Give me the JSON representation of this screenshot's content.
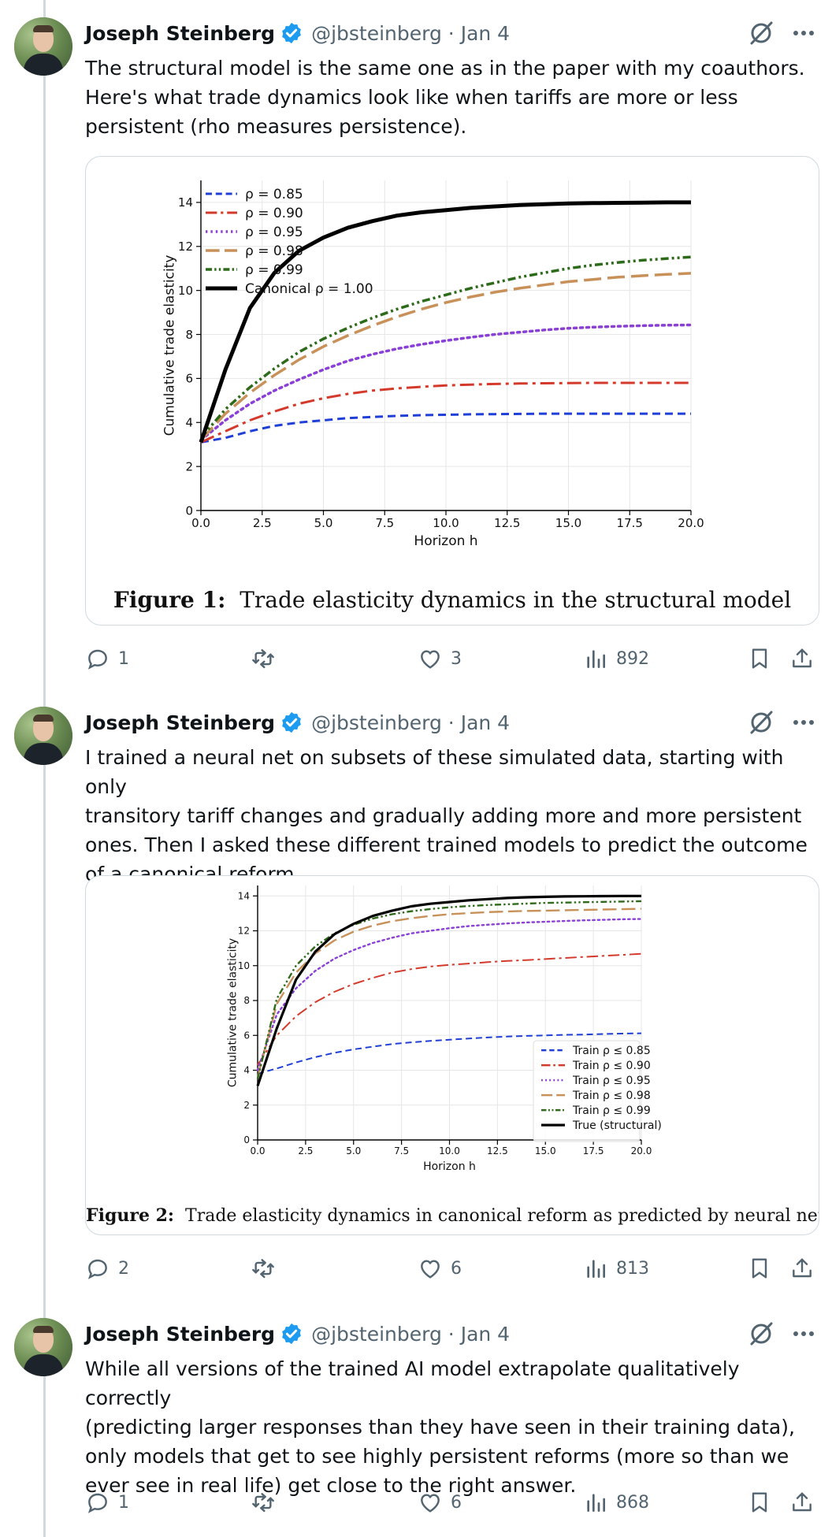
{
  "author": {
    "name": "Joseph Steinberg",
    "handle": "@jbsteinberg",
    "date": "Jan 4",
    "handle_date": "@jbsteinberg · Jan 4"
  },
  "colors": {
    "verified": "#1d9bf0",
    "muted": "#536471",
    "border": "#cfd9de"
  },
  "tweets": [
    {
      "text": "The structural model is the same one as in the paper with my coauthors.\nHere's what trade dynamics look like when tariffs are more or less\npersistent (rho measures persistence).",
      "caption_label": "Figure 1:",
      "caption_text": "Trade elasticity dynamics in the structural model",
      "stats": {
        "replies": "1",
        "retweets": "",
        "likes": "3",
        "views": "892"
      }
    },
    {
      "text": "I trained a neural net on subsets of these simulated data, starting with only\ntransitory tariff changes and gradually adding more and more persistent\nones. Then I asked these different trained models to predict the outcome\nof a canonical reform.",
      "caption_label": "Figure 2:",
      "caption_text": "Trade elasticity dynamics in canonical reform as predicted by neural net",
      "stats": {
        "replies": "2",
        "retweets": "",
        "likes": "6",
        "views": "813"
      }
    },
    {
      "text": "While all versions of the trained AI model extrapolate qualitatively correctly\n(predicting larger responses than they have seen in their training data),\nonly models that get to see highly persistent reforms (more so than we\never see in real life) get close to the right answer.",
      "stats": {
        "replies": "1",
        "retweets": "",
        "likes": "6",
        "views": "868"
      }
    }
  ],
  "chart_data": [
    {
      "type": "line",
      "xlabel": "Horizon h",
      "ylabel": "Cumulative trade elasticity",
      "xlim": [
        0,
        20
      ],
      "ylim": [
        0,
        15
      ],
      "xticks": [
        "0.0",
        "2.5",
        "5.0",
        "7.5",
        "10.0",
        "12.5",
        "15.0",
        "17.5",
        "20.0"
      ],
      "yticks": [
        "0",
        "2",
        "4",
        "6",
        "8",
        "10",
        "12",
        "14"
      ],
      "legend": "upper-left",
      "grid": true,
      "x": [
        0,
        1,
        2,
        3,
        4,
        5,
        6,
        7,
        8,
        9,
        10,
        11,
        12,
        13,
        14,
        15,
        16,
        17,
        18,
        19,
        20
      ],
      "series": [
        {
          "name": "ρ = 0.85",
          "color": "#1f3fd6",
          "dash": "10,6",
          "width": 3,
          "values": [
            3.1,
            3.3,
            3.6,
            3.85,
            4.0,
            4.1,
            4.2,
            4.25,
            4.3,
            4.33,
            4.35,
            4.37,
            4.38,
            4.39,
            4.4,
            4.4,
            4.4,
            4.4,
            4.4,
            4.4,
            4.4
          ]
        },
        {
          "name": "ρ = 0.90",
          "color": "#d43a2c",
          "dash": "18,6,4,6",
          "width": 3,
          "values": [
            3.1,
            3.6,
            4.1,
            4.5,
            4.85,
            5.1,
            5.3,
            5.45,
            5.55,
            5.62,
            5.68,
            5.72,
            5.75,
            5.77,
            5.78,
            5.79,
            5.8,
            5.8,
            5.8,
            5.8,
            5.8
          ]
        },
        {
          "name": "ρ = 0.95",
          "color": "#8a3fd6",
          "dash": "3,5",
          "width": 3.5,
          "values": [
            3.2,
            4.1,
            4.85,
            5.45,
            5.95,
            6.4,
            6.8,
            7.1,
            7.35,
            7.55,
            7.72,
            7.87,
            8.0,
            8.1,
            8.2,
            8.28,
            8.33,
            8.37,
            8.4,
            8.42,
            8.43
          ]
        },
        {
          "name": "ρ = 0.98",
          "color": "#c8915a",
          "dash": "22,8",
          "width": 3.5,
          "values": [
            3.2,
            4.4,
            5.35,
            6.15,
            6.85,
            7.45,
            7.95,
            8.4,
            8.8,
            9.15,
            9.45,
            9.7,
            9.92,
            10.1,
            10.25,
            10.4,
            10.5,
            10.6,
            10.67,
            10.73,
            10.78
          ]
        },
        {
          "name": "ρ = 0.99",
          "color": "#2d6a1a",
          "dash": "10,4,3,4,3,4",
          "width": 3.5,
          "values": [
            3.3,
            4.6,
            5.6,
            6.45,
            7.2,
            7.8,
            8.3,
            8.75,
            9.15,
            9.5,
            9.8,
            10.1,
            10.35,
            10.6,
            10.8,
            11.0,
            11.15,
            11.27,
            11.37,
            11.45,
            11.52
          ]
        },
        {
          "name": "Canonical ρ = 1.00",
          "color": "#000000",
          "dash": "",
          "width": 5,
          "values": [
            3.1,
            6.4,
            9.2,
            10.8,
            11.8,
            12.4,
            12.85,
            13.15,
            13.4,
            13.55,
            13.65,
            13.75,
            13.82,
            13.88,
            13.92,
            13.95,
            13.97,
            13.98,
            13.99,
            14.0,
            14.0
          ]
        }
      ]
    },
    {
      "type": "line",
      "xlabel": "Horizon h",
      "ylabel": "Cumulative trade elasticity",
      "xlim": [
        0,
        20
      ],
      "ylim": [
        0,
        14.6
      ],
      "xticks": [
        "0.0",
        "2.5",
        "5.0",
        "7.5",
        "10.0",
        "12.5",
        "15.0",
        "17.5",
        "20.0"
      ],
      "yticks": [
        "0",
        "2",
        "4",
        "6",
        "8",
        "10",
        "12",
        "14"
      ],
      "legend": "lower-right",
      "grid": true,
      "x": [
        0,
        1,
        2,
        3,
        4,
        5,
        6,
        7,
        8,
        9,
        10,
        11,
        12,
        13,
        14,
        15,
        16,
        17,
        18,
        19,
        20
      ],
      "series": [
        {
          "name": "Train ρ ≤ 0.85",
          "color": "#1f3fd6",
          "dash": "10,6",
          "width": 2.5,
          "values": [
            3.8,
            4.1,
            4.45,
            4.75,
            5.0,
            5.2,
            5.35,
            5.5,
            5.6,
            5.68,
            5.75,
            5.82,
            5.88,
            5.93,
            5.97,
            6.0,
            6.03,
            6.05,
            6.08,
            6.1,
            6.12
          ]
        },
        {
          "name": "Train ρ ≤ 0.90",
          "color": "#d43a2c",
          "dash": "18,6,4,6",
          "width": 2.5,
          "values": [
            4.3,
            6.0,
            7.1,
            7.9,
            8.5,
            8.95,
            9.3,
            9.6,
            9.8,
            9.95,
            10.05,
            10.12,
            10.2,
            10.27,
            10.32,
            10.38,
            10.44,
            10.5,
            10.56,
            10.62,
            10.68
          ]
        },
        {
          "name": "Train ρ ≤ 0.95",
          "color": "#8a3fd6",
          "dash": "3,5",
          "width": 3,
          "values": [
            4.0,
            7.2,
            8.7,
            9.7,
            10.4,
            10.9,
            11.3,
            11.6,
            11.85,
            12.0,
            12.15,
            12.27,
            12.35,
            12.42,
            12.48,
            12.52,
            12.56,
            12.6,
            12.63,
            12.66,
            12.68
          ]
        },
        {
          "name": "Train ρ ≤ 0.98",
          "color": "#c8915a",
          "dash": "22,8",
          "width": 3,
          "values": [
            3.6,
            7.8,
            9.6,
            10.7,
            11.45,
            11.95,
            12.3,
            12.55,
            12.72,
            12.85,
            12.95,
            13.02,
            13.07,
            13.11,
            13.14,
            13.16,
            13.18,
            13.2,
            13.22,
            13.24,
            13.26
          ]
        },
        {
          "name": "Train ρ ≤ 0.99",
          "color": "#2d6a1a",
          "dash": "10,4,3,4,3,4",
          "width": 3,
          "values": [
            3.5,
            8.1,
            10.0,
            11.1,
            11.85,
            12.35,
            12.7,
            12.95,
            13.12,
            13.25,
            13.35,
            13.42,
            13.48,
            13.52,
            13.56,
            13.6,
            13.62,
            13.64,
            13.66,
            13.68,
            13.7
          ]
        },
        {
          "name": "True (structural)",
          "color": "#000000",
          "dash": "",
          "width": 4,
          "values": [
            3.1,
            6.4,
            9.2,
            10.8,
            11.8,
            12.4,
            12.85,
            13.15,
            13.4,
            13.55,
            13.65,
            13.75,
            13.82,
            13.88,
            13.92,
            13.95,
            13.97,
            13.98,
            13.99,
            14.0,
            14.0
          ]
        }
      ]
    }
  ]
}
